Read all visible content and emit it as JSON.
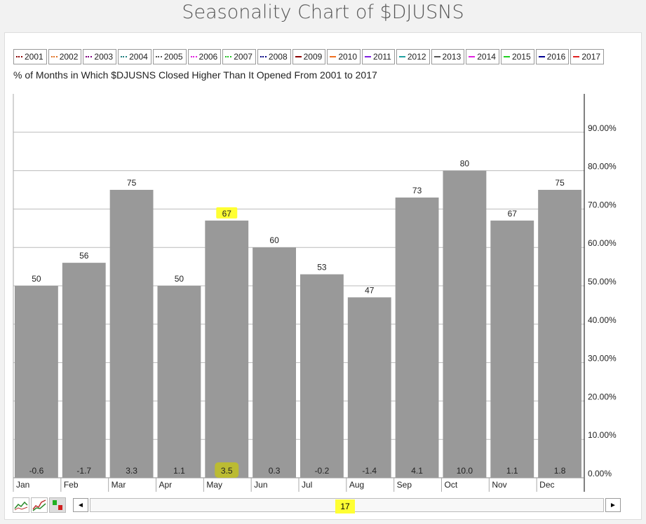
{
  "page": {
    "title": "Seasonality Chart of $DJUSNS"
  },
  "legend": [
    {
      "label": "2001",
      "color": "#8b0000",
      "style": "dotted"
    },
    {
      "label": "2002",
      "color": "#e07020",
      "style": "dotted"
    },
    {
      "label": "2003",
      "color": "#800080",
      "style": "dotted"
    },
    {
      "label": "2004",
      "color": "#208080",
      "style": "dotted"
    },
    {
      "label": "2005",
      "color": "#555555",
      "style": "dotted"
    },
    {
      "label": "2006",
      "color": "#e020e0",
      "style": "dotted"
    },
    {
      "label": "2007",
      "color": "#20c020",
      "style": "dotted"
    },
    {
      "label": "2008",
      "color": "#000080",
      "style": "dotted"
    },
    {
      "label": "2009",
      "color": "#8b0000",
      "style": "solid"
    },
    {
      "label": "2010",
      "color": "#f07020",
      "style": "solid"
    },
    {
      "label": "2011",
      "color": "#8020e0",
      "style": "solid"
    },
    {
      "label": "2012",
      "color": "#20a0a0",
      "style": "solid"
    },
    {
      "label": "2013",
      "color": "#555555",
      "style": "solid"
    },
    {
      "label": "2014",
      "color": "#e020e0",
      "style": "solid"
    },
    {
      "label": "2015",
      "color": "#20d020",
      "style": "solid"
    },
    {
      "label": "2016",
      "color": "#000090",
      "style": "solid"
    },
    {
      "label": "2017",
      "color": "#e02020",
      "style": "solid"
    }
  ],
  "subtitle": "% of Months in Which $DJUSNS Closed Higher Than It Opened From 2001 to 2017",
  "chart_data": {
    "type": "bar",
    "categories": [
      "Jan",
      "Feb",
      "Mar",
      "Apr",
      "May",
      "Jun",
      "Jul",
      "Aug",
      "Sep",
      "Oct",
      "Nov",
      "Dec"
    ],
    "values": [
      50,
      56,
      75,
      50,
      67,
      60,
      53,
      47,
      73,
      80,
      67,
      75
    ],
    "value_labels": [
      "50",
      "56",
      "75",
      "50",
      "67",
      "60",
      "53",
      "47",
      "73",
      "80",
      "67",
      "75"
    ],
    "avg_change_labels": [
      "-0.6",
      "-1.7",
      "3.3",
      "1.1",
      "3.5",
      "0.3",
      "-0.2",
      "-1.4",
      "4.1",
      "10.0",
      "1.1",
      "1.8"
    ],
    "highlighted_category": "May",
    "y_ticks": [
      "0.00%",
      "10.00%",
      "20.00%",
      "30.00%",
      "40.00%",
      "50.00%",
      "60.00%",
      "70.00%",
      "80.00%",
      "90.00%"
    ],
    "y_tick_values": [
      0,
      10,
      20,
      30,
      40,
      50,
      60,
      70,
      80,
      90
    ],
    "ylim": [
      0,
      100
    ],
    "y_axis_side": "right",
    "grid": true,
    "bar_color": "#999999",
    "highlight_color": "#ffff33",
    "highlight_label_bg": "#bbbb33"
  },
  "scroller": {
    "label": "17",
    "left_arrow": "◄",
    "right_arrow": "►"
  }
}
